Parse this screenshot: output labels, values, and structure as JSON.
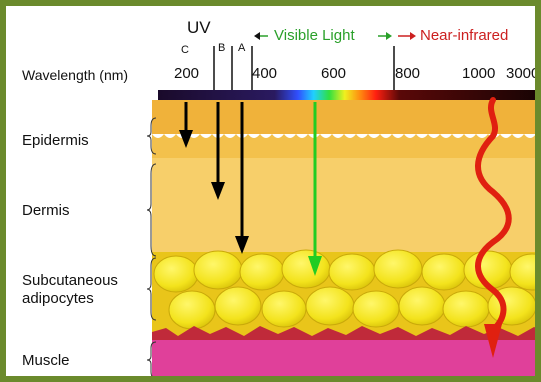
{
  "header": {
    "uv": "UV",
    "uv_bands": [
      "C",
      "B",
      "A"
    ],
    "visible": "Visible Light",
    "nir": "Near-infrared",
    "wavelength_label": "Wavelength (nm)",
    "ticks": [
      "200",
      "400",
      "600",
      "800",
      "1000",
      "3000"
    ]
  },
  "layers": {
    "epidermis": "Epidermis",
    "dermis": "Dermis",
    "subcutaneous": "Subcutaneous\nadipocytes",
    "muscle": "Muscle"
  },
  "colors": {
    "frame": "#6b8a2c",
    "uv_arrow": "#000000",
    "visible_arrow": "#22cc22",
    "nir_wave": "#e02010",
    "epidermis": "#f0b23a",
    "dermis": "#f7cf6a",
    "fat": "#f2e21a",
    "muscle": "#e0409a"
  }
}
